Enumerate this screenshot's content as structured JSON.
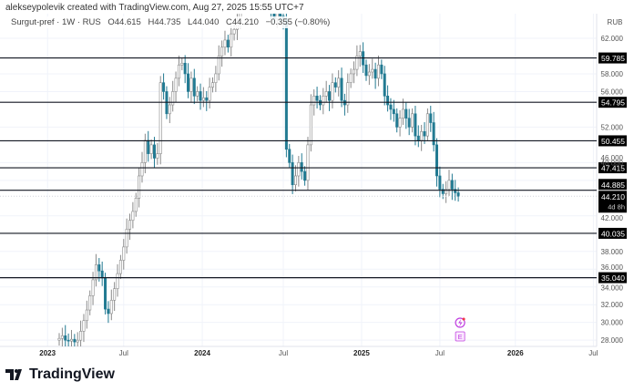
{
  "header": {
    "credit": "alekseypolevik created with TradingView.com, Aug 27, 2025 15:55 UTC+7",
    "symbol": "Surgut-pref · 1W · RUS",
    "open": "O44.615",
    "high": "H44.735",
    "low": "L44.040",
    "close": "C44.210",
    "change": "−0.355 (−0.80%)"
  },
  "footer": {
    "brand": "TradingView"
  },
  "colors": {
    "up": "#ffffff",
    "up_border": "#8a8a8a",
    "down": "#227a92",
    "level": "#131722",
    "grid": "#f0f3fa"
  },
  "chart_data": {
    "type": "candlestick",
    "title": "Surgut-pref · 1W · RUS",
    "currency": "RUB",
    "ylim": [
      26.6,
      64.6
    ],
    "y_ticks": [
      "28.000",
      "30.000",
      "32.000",
      "34.000",
      "36.000",
      "38.000",
      "42.000",
      "46.000",
      "48.000",
      "52.000",
      "56.000",
      "58.000",
      "62.000"
    ],
    "y_tick_values": [
      28,
      30,
      32,
      34,
      36,
      38,
      42,
      46,
      48,
      52,
      56,
      58,
      62
    ],
    "x_ticks": [
      {
        "label": "2023",
        "week": -3.8,
        "bold": true
      },
      {
        "label": "Jul",
        "week": 21,
        "bold": false
      },
      {
        "label": "2024",
        "week": 46.6,
        "bold": true
      },
      {
        "label": "Jul",
        "week": 73,
        "bold": false
      },
      {
        "label": "2025",
        "week": 98.5,
        "bold": true
      },
      {
        "label": "Jul",
        "week": 124,
        "bold": false
      },
      {
        "label": "2026",
        "week": 148.6,
        "bold": true
      },
      {
        "label": "Jul",
        "week": 174,
        "bold": false
      }
    ],
    "weekly_close": [
      28.2,
      28.5,
      28.0,
      27.9,
      28.1,
      27.8,
      28.0,
      29.0,
      30.2,
      31.4,
      33.0,
      34.8,
      36.5,
      35.8,
      35.0,
      31.5,
      31.0,
      32.5,
      33.8,
      35.5,
      37.0,
      38.5,
      40.5,
      41.5,
      42.5,
      44.0,
      46.5,
      48.0,
      50.5,
      49.0,
      50.0,
      48.5,
      49.0,
      57.0,
      56.0,
      53.5,
      54.5,
      56.0,
      57.5,
      59.0,
      59.2,
      58.0,
      56.0,
      57.5,
      55.5,
      56.0,
      55.0,
      55.3,
      55.0,
      56.5,
      57.0,
      58.0,
      60.0,
      61.0,
      61.8,
      61.0,
      62.5,
      63.0,
      64.0,
      66.0,
      68,
      69,
      70,
      71,
      70,
      69,
      68,
      67,
      66,
      65,
      64.2,
      64.8,
      64.5,
      64.2,
      49.5,
      48.0,
      45.5,
      46.5,
      48.0,
      47.0,
      46.0,
      50.0,
      54.5,
      55.5,
      55.0,
      54.5,
      55.5,
      56.0,
      55.0,
      57.0,
      56.5,
      57.5,
      55.0,
      54.5,
      57.0,
      58.0,
      58.5,
      60.0,
      60.5,
      59.0,
      57.8,
      58.2,
      58.5,
      57.5,
      59.0,
      58.0,
      55.5,
      54.5,
      54.0,
      53.5,
      52.0,
      53.0,
      54.0,
      53.0,
      52.0,
      53.5,
      51.0,
      50.5,
      51.5,
      51.0,
      53.5,
      52.5,
      50.0,
      46.5,
      45.0,
      44.5,
      45.0,
      46.0,
      45.0,
      44.6,
      44.21
    ],
    "levels": [
      {
        "value": 59.785,
        "label": "59.785"
      },
      {
        "value": 54.795,
        "label": "54.795"
      },
      {
        "value": 50.455,
        "label": "50.455"
      },
      {
        "value": 47.415,
        "label": "47.415"
      },
      {
        "value": 44.885,
        "label": "44.885"
      },
      {
        "value": 40.035,
        "label": "40.035"
      },
      {
        "value": 35.04,
        "label": "35.040"
      }
    ],
    "last_price": {
      "value": 44.21,
      "label": "44.210",
      "countdown": "4d 8h"
    },
    "events": [
      {
        "icon": "lightning-icon"
      },
      {
        "icon": "earnings-icon",
        "label": "E"
      }
    ]
  }
}
